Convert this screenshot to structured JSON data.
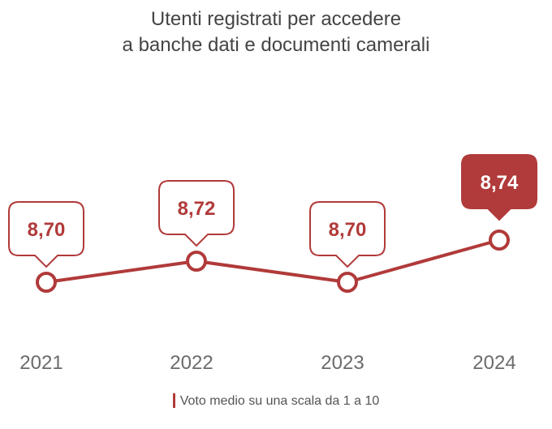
{
  "title": {
    "line1": "Utenti registrati per accedere",
    "line2": "a banche dati e documenti camerali"
  },
  "colors": {
    "accent": "#b13a3a",
    "text": "#444444",
    "tick": "#6b6b6b",
    "background": "#ffffff"
  },
  "legend": {
    "label": "Voto medio su una scala da 1 a 10"
  },
  "chart_data": {
    "type": "line",
    "categories": [
      "2021",
      "2022",
      "2023",
      "2024"
    ],
    "series": [
      {
        "values": [
          8.7,
          8.72,
          8.7,
          8.74
        ]
      }
    ],
    "data_labels": [
      "8,70",
      "8,72",
      "8,70",
      "8,74"
    ],
    "highlighted_index": 3,
    "title": "Utenti registrati per accedere a banche dati e documenti camerali",
    "xlabel": "",
    "ylabel": "",
    "grid": false,
    "legend_position": "bottom"
  }
}
